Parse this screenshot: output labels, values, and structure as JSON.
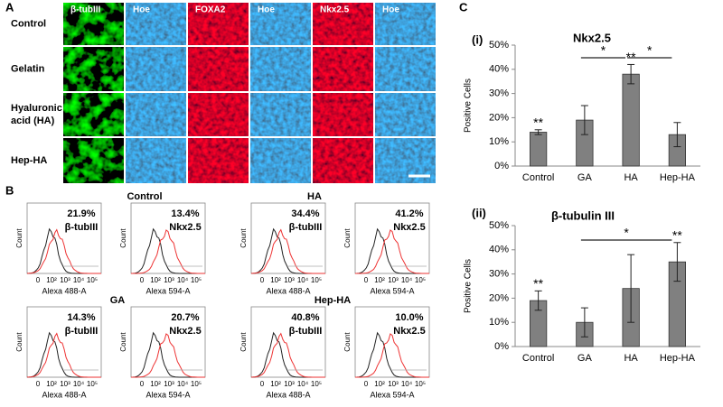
{
  "panel_a": {
    "label": "A",
    "columns": [
      "β-tubIII",
      "Hoe",
      "FOXA2",
      "Hoe",
      "Nkx2.5",
      "Hoe"
    ],
    "rows": [
      [
        "Control"
      ],
      [
        "Gelatin"
      ],
      [
        "Hyaluronic",
        "acid (HA)"
      ],
      [
        "Hep-HA"
      ]
    ]
  },
  "panel_b": {
    "label": "B",
    "ylabel": "Count",
    "xticks": [
      "0",
      "10²",
      "10³",
      "10⁴",
      "10⁵"
    ],
    "groups": [
      {
        "title": "Control",
        "plots": [
          {
            "percent": "21.9%",
            "marker": "β-tubIII",
            "xlabel": "Alexa 488-A"
          },
          {
            "percent": "13.4%",
            "marker": "Nkx2.5",
            "xlabel": "Alexa 594-A"
          }
        ]
      },
      {
        "title": "HA",
        "plots": [
          {
            "percent": "34.4%",
            "marker": "β-tubIII",
            "xlabel": "Alexa 488-A"
          },
          {
            "percent": "41.2%",
            "marker": "Nkx2.5",
            "xlabel": "Alexa 594-A"
          }
        ]
      },
      {
        "title": "GA",
        "plots": [
          {
            "percent": "14.3%",
            "marker": "β-tubIII",
            "xlabel": "Alexa 488-A"
          },
          {
            "percent": "20.7%",
            "marker": "Nkx2.5",
            "xlabel": "Alexa 594-A"
          }
        ]
      },
      {
        "title": "Hep-HA",
        "plots": [
          {
            "percent": "40.8%",
            "marker": "β-tubIII",
            "xlabel": "Alexa 488-A"
          },
          {
            "percent": "10.0%",
            "marker": "Nkx2.5",
            "xlabel": "Alexa 594-A"
          }
        ]
      }
    ]
  },
  "panel_c": {
    "label": "C"
  },
  "chart_data": [
    {
      "type": "bar",
      "label": "(i)",
      "title": "Nkx2.5",
      "ylabel": "Positive Cells",
      "categories": [
        "Control",
        "GA",
        "HA",
        "Hep-HA"
      ],
      "values": [
        14,
        19,
        38,
        13
      ],
      "errors": [
        1,
        6,
        4,
        5
      ],
      "color": "#808080",
      "ylim": [
        0,
        50
      ],
      "yticks": [
        {
          "value": 0,
          "label": "0%"
        },
        {
          "value": 10,
          "label": "10%"
        },
        {
          "value": 20,
          "label": "20%"
        },
        {
          "value": 30,
          "label": "30%"
        },
        {
          "value": 40,
          "label": "40%"
        },
        {
          "value": 50,
          "label": "50%"
        }
      ],
      "annotations": [
        "**",
        "*",
        "**",
        "*"
      ]
    },
    {
      "type": "bar",
      "label": "(ii)",
      "title": "β-tubulin III",
      "ylabel": "Positive Cells",
      "categories": [
        "Control",
        "GA",
        "HA",
        "Hep-HA"
      ],
      "values": [
        19,
        10,
        24,
        35
      ],
      "errors": [
        4,
        6,
        14,
        8
      ],
      "color": "#808080",
      "ylim": [
        0,
        50
      ],
      "yticks": [
        {
          "value": 0,
          "label": "0%"
        },
        {
          "value": 10,
          "label": "10%"
        },
        {
          "value": 20,
          "label": "20%"
        },
        {
          "value": 30,
          "label": "30%"
        },
        {
          "value": 40,
          "label": "40%"
        },
        {
          "value": 50,
          "label": "50%"
        }
      ],
      "annotations": [
        "**",
        "*",
        "**"
      ]
    }
  ]
}
